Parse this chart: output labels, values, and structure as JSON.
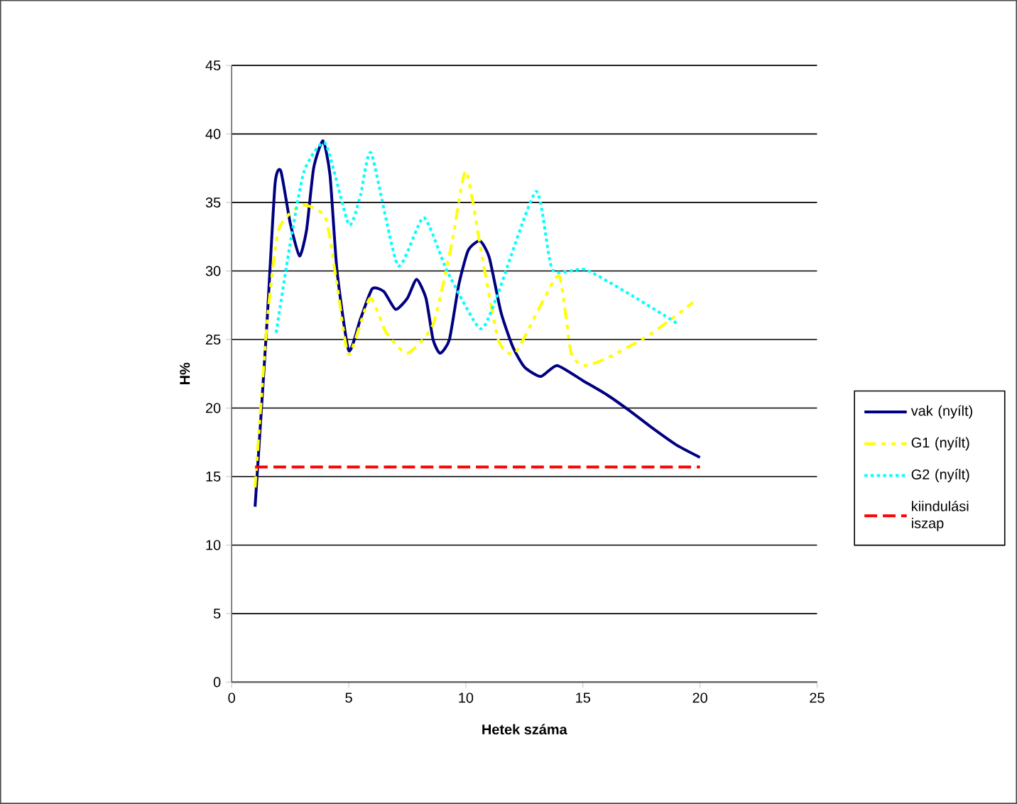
{
  "chart_data": {
    "type": "line",
    "xlabel": "Hetek száma",
    "ylabel": "H%",
    "xlim": [
      0,
      25
    ],
    "xticks": [
      0,
      5,
      10,
      15,
      20,
      25
    ],
    "ylim": [
      0,
      45
    ],
    "yticks": [
      0,
      5,
      10,
      15,
      20,
      25,
      30,
      35,
      40,
      45
    ],
    "grid": "y",
    "legend": "right",
    "marker": "none",
    "series": [
      {
        "name": "vak (nyílt)",
        "color": "#000080",
        "line_style": "solid",
        "x": [
          1,
          1.5,
          1.85,
          2.1,
          2.5,
          2.9,
          3.2,
          3.5,
          3.9,
          4.2,
          4.5,
          5,
          5.5,
          6,
          6.5,
          7,
          7.5,
          7.9,
          8.3,
          8.6,
          8.9,
          9.3,
          9.7,
          10.1,
          10.6,
          11,
          11.5,
          12,
          12.5,
          13.2,
          13.9,
          15,
          16,
          17,
          18,
          19,
          20
        ],
        "values": [
          12.8,
          26,
          36.3,
          37.3,
          33.5,
          31.1,
          33,
          37.5,
          39.5,
          37,
          30,
          24.2,
          26.5,
          28.7,
          28.5,
          27.2,
          28,
          29.4,
          28,
          25,
          24,
          25,
          29,
          31.5,
          32.2,
          31,
          27,
          24.5,
          23,
          22.3,
          23.1,
          22,
          21,
          19.8,
          18.5,
          17.3,
          16.4
        ]
      },
      {
        "name": "G1 (nyílt)",
        "color": "#ffff00",
        "line_style": "dashdot",
        "x": [
          1,
          1.5,
          2,
          3,
          4,
          4.5,
          5,
          5.9,
          6.6,
          7.5,
          8.6,
          9.4,
          10,
          10.7,
          11.4,
          12.1,
          13.2,
          14,
          14.5,
          15.1,
          16.1,
          17.9,
          19.7
        ],
        "values": [
          14.2,
          26,
          33,
          34.8,
          33.9,
          29,
          23.9,
          28,
          25.5,
          24,
          26.1,
          32,
          37.3,
          31,
          24.9,
          24,
          27.5,
          29.6,
          24,
          23.1,
          23.7,
          25.4,
          27.7
        ]
      },
      {
        "name": "G2 (nyílt)",
        "color": "#00ffff",
        "line_style": "dotted",
        "x": [
          1.9,
          2.5,
          3.1,
          4,
          5,
          5.5,
          5.96,
          7.1,
          8.2,
          9.2,
          10.6,
          11.3,
          13,
          13.7,
          15.1,
          17.1,
          19.1
        ],
        "values": [
          25.5,
          32,
          37.3,
          39.3,
          33.4,
          35.5,
          38.6,
          30.4,
          33.9,
          30,
          25.8,
          28,
          35.8,
          30.1,
          30.1,
          28.2,
          26.1
        ]
      },
      {
        "name": "kiindulási iszap",
        "color": "#ff0000",
        "line_style": "dashed",
        "x": [
          1,
          20
        ],
        "values": [
          15.7,
          15.7
        ]
      }
    ]
  }
}
